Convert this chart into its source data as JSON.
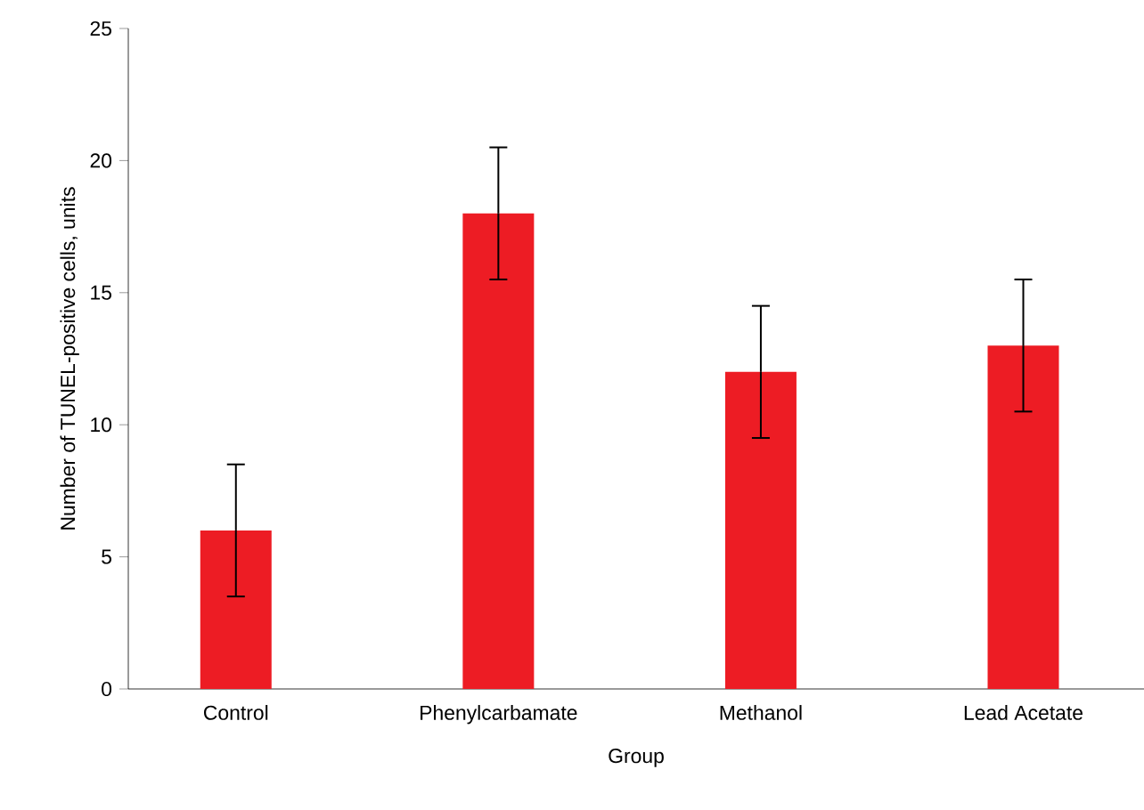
{
  "chart_data": {
    "type": "bar",
    "xlabel": "Group",
    "ylabel": "Number of TUNEL-positive cells, units",
    "categories": [
      "Control",
      "Phenylcarbamate",
      "Methanol",
      "Lead Acetate"
    ],
    "values": [
      6,
      18,
      12,
      13
    ],
    "errors": [
      2.5,
      2.5,
      2.5,
      2.5
    ],
    "color": "#ed1c24",
    "ylim": [
      0,
      25
    ],
    "yticks": [
      0,
      5,
      10,
      15,
      20,
      25
    ]
  }
}
